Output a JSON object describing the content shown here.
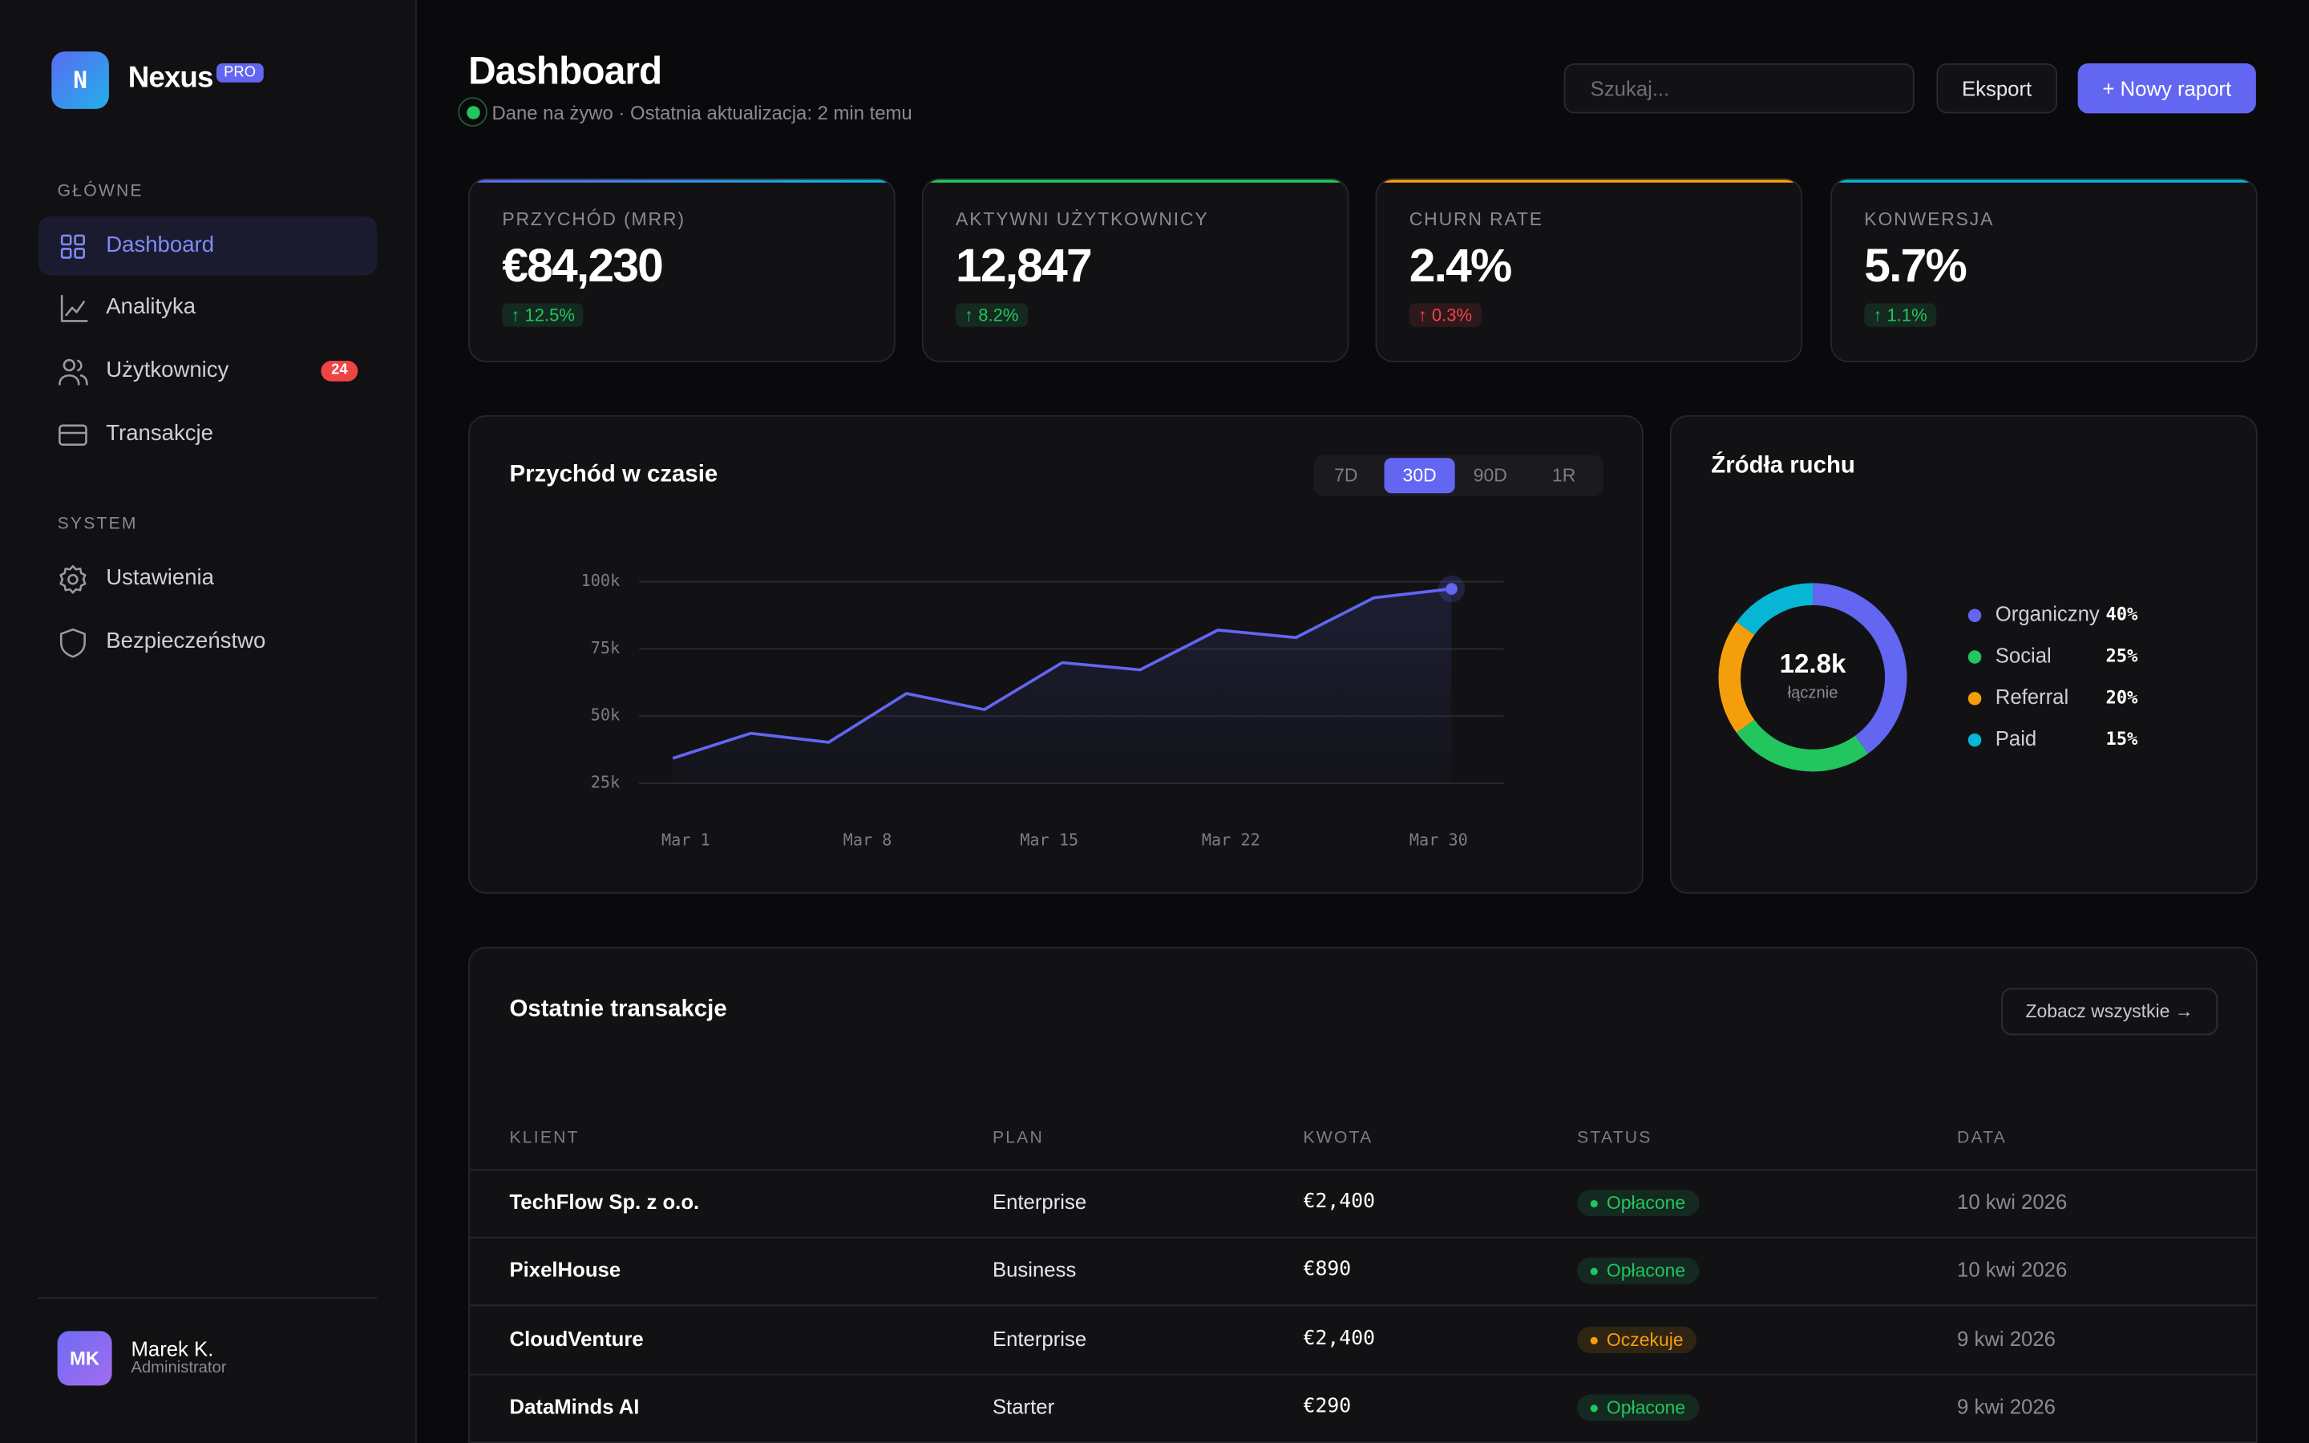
{
  "sidebar": {
    "logo": "N",
    "brand": "Nexus",
    "badge": "PRO",
    "sections": [
      {
        "title": "GŁÓWNE",
        "items": [
          {
            "label": "Dashboard",
            "active": true
          },
          {
            "label": "Analityka"
          },
          {
            "label": "Użytkownicy",
            "badge": "24"
          },
          {
            "label": "Transakcje"
          }
        ]
      },
      {
        "title": "SYSTEM",
        "items": [
          {
            "label": "Ustawienia"
          },
          {
            "label": "Bezpieczeństwo"
          }
        ]
      }
    ],
    "user": {
      "initials": "MK",
      "name": "Marek K.",
      "role": "Administrator"
    }
  },
  "header": {
    "title": "Dashboard",
    "subtitle": "Dane na żywo · Ostatnia aktualizacja: 2 min temu",
    "search_placeholder": "Szukaj...",
    "buttons": [
      "Eksport",
      "+ Nowy raport"
    ]
  },
  "kpis": [
    {
      "label": "PRZYCHÓD (MRR)",
      "value": "€84,230",
      "delta": "↑ 12.5%",
      "delta_color": "#22c55e",
      "accent": [
        "#6366f1",
        "#06b6d4"
      ]
    },
    {
      "label": "AKTYWNI UŻYTKOWNICY",
      "value": "12,847",
      "delta": "↑ 8.2%",
      "delta_color": "#22c55e",
      "accent": [
        "#22c55e",
        "#22c55e"
      ]
    },
    {
      "label": "CHURN RATE",
      "value": "2.4%",
      "delta": "↑ 0.3%",
      "delta_color": "#ef4444",
      "accent": [
        "#f59e0b",
        "#f59e0b"
      ]
    },
    {
      "label": "KONWERSJA",
      "value": "5.7%",
      "delta": "↑ 1.1%",
      "delta_color": "#22c55e",
      "accent": [
        "#06b6d4",
        "#06b6d4"
      ]
    }
  ],
  "revenue_chart": {
    "tabs": [
      "7D",
      "30D",
      "90D",
      "1R"
    ],
    "active_tab": 1,
    "chart_data": {
      "type": "line",
      "title": "Przychód w czasie",
      "x": [
        0.5,
        3.5,
        6.5,
        9.5,
        12.5,
        15.5,
        18.5,
        21.5,
        24.5,
        27.5,
        30.5
      ],
      "series": [
        {
          "color": "#6366f1",
          "values": [
            34.3,
            43.6,
            40.3,
            58.4,
            52.4,
            69.9,
            67.2,
            82,
            79.2,
            94,
            97.3
          ]
        }
      ],
      "xlim": [
        -0.8,
        32.5
      ],
      "xticks": [
        {
          "value": 1,
          "label": "Mar 1"
        },
        {
          "value": 8,
          "label": "Mar 8"
        },
        {
          "value": 15,
          "label": "Mar 15"
        },
        {
          "value": 22,
          "label": "Mar 22"
        },
        {
          "value": 30,
          "label": "Mar 30"
        }
      ],
      "ylim": [
        25,
        100
      ],
      "yticks": [
        {
          "value": 25,
          "label": "25k"
        },
        {
          "value": 50,
          "label": "50k"
        },
        {
          "value": 75,
          "label": "75k"
        },
        {
          "value": 100,
          "label": "100k"
        }
      ],
      "grid": true
    }
  },
  "traffic_chart": {
    "chart_data": {
      "type": "donut",
      "title": "Źródła ruchu",
      "center_value": "12.8k",
      "center_label": "łącznie",
      "categories": [
        "Organiczny",
        "Social",
        "Referral",
        "Paid"
      ],
      "values": [
        40,
        25,
        20,
        15
      ],
      "value_labels": [
        "40%",
        "25%",
        "20%",
        "15%"
      ],
      "colors": [
        "#6366f1",
        "#22c55e",
        "#f59e0b",
        "#06b6d4"
      ]
    }
  },
  "transactions": {
    "title": "Ostatnie transakcje",
    "button": "Zobacz wszystkie →",
    "columns": [
      "KLIENT",
      "PLAN",
      "KWOTA",
      "STATUS",
      "DATA"
    ],
    "rows": [
      {
        "client": "TechFlow Sp. z o.o.",
        "plan": "Enterprise",
        "amount": "€2,400",
        "status": "Opłacone",
        "status_color": "#22c55e",
        "date": "10 kwi 2026"
      },
      {
        "client": "PixelHouse",
        "plan": "Business",
        "amount": "€890",
        "status": "Opłacone",
        "status_color": "#22c55e",
        "date": "10 kwi 2026"
      },
      {
        "client": "CloudVenture",
        "plan": "Enterprise",
        "amount": "€2,400",
        "status": "Oczekuje",
        "status_color": "#f59e0b",
        "date": "9 kwi 2026"
      },
      {
        "client": "DataMinds AI",
        "plan": "Starter",
        "amount": "€290",
        "status": "Opłacone",
        "status_color": "#22c55e",
        "date": "9 kwi 2026"
      }
    ]
  }
}
